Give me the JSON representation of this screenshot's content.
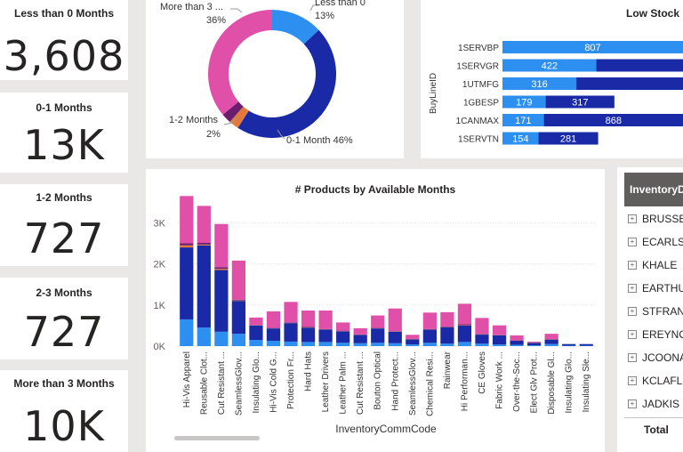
{
  "kpis": [
    {
      "title": "Less than 0 Months",
      "value": "3,608"
    },
    {
      "title": "0-1 Months",
      "value": "13K"
    },
    {
      "title": "1-2 Months",
      "value": "727"
    },
    {
      "title": "2-3 Months",
      "value": "727"
    },
    {
      "title": "More than 3 Months",
      "value": "10K"
    }
  ],
  "donut": {
    "chart_data": {
      "type": "pie",
      "slices": [
        {
          "label": "Less than 0",
          "value": 13,
          "display": "13%",
          "color": "#2d8ff0"
        },
        {
          "label": "0-1 Month",
          "value": 46,
          "display": "0-1 Month 46%",
          "color": "#1a2aa6"
        },
        {
          "label": "",
          "value": 2.5,
          "display": "",
          "color": "#e5793a"
        },
        {
          "label": "",
          "value": 2.5,
          "display": "",
          "color": "#6b1e6e"
        },
        {
          "label": "More than 3 ...",
          "value": 36,
          "display": "36%",
          "color": "#e04fa8"
        }
      ],
      "labels": {
        "top_left": "More than 3 ...",
        "top_left_pct": "36%",
        "top_right": "Less than 0",
        "top_right_pct": "13%",
        "left": "1-2 Months",
        "left_pct": "2%",
        "bottom": "0-1 Month 46%"
      }
    }
  },
  "low_stock": {
    "title": "Low Stock",
    "axis_label": "BuyLineID",
    "chart_data": {
      "type": "bar",
      "orientation": "horizontal",
      "categories": [
        "1SERVBP",
        "1SERVGR",
        "1UTMFG",
        "1GBESP",
        "1CANMAX",
        "1SERVTN"
      ],
      "series": [
        {
          "values": [
            807,
            422,
            316,
            179,
            171,
            154
          ],
          "color": "#2d8ff0"
        },
        {
          "values": [
            null,
            null,
            null,
            317,
            868,
            281
          ],
          "color": "#1a2aa6"
        }
      ],
      "bar_ends_fraction": [
        1.0,
        1.0,
        1.0,
        0.62,
        1.0,
        0.53
      ],
      "light_fraction": [
        1.0,
        0.52,
        0.41,
        0.24,
        0.23,
        0.2
      ]
    }
  },
  "products": {
    "title": "# Products by Available Months",
    "xlabel": "InventoryCommCode",
    "chart_data": {
      "type": "bar",
      "stacked": true,
      "ylim": [
        0,
        3700
      ],
      "yticks": [
        0,
        1000,
        2000,
        3000
      ],
      "ytick_labels": [
        "0K",
        "1K",
        "2K",
        "3K"
      ],
      "categories": [
        "Hi-Vis Apparel",
        "Reusable Clot...",
        "Cut Resistant ...",
        "SeamlessGlov...",
        "Insulating Glo...",
        "Hi-Vis Cold G...",
        "Protection Fr...",
        "Hard Hats",
        "Leather Drivers",
        "Leather Palm ...",
        "Cut Resistant ...",
        "Bouton Optical",
        "Hand Protect...",
        "SeamlessGlov...",
        "Chemical Resi...",
        "Rainwear",
        "Hi Performan...",
        "CE Gloves",
        "Fabric Work ...",
        "Over-the-Soc...",
        "Elect Glv Prot...",
        "Disposable Gl...",
        "Insulating Glo...",
        "Insulating Sle..."
      ],
      "series": [
        {
          "name": "Less than 0",
          "color": "#2d8ff0",
          "values": [
            650,
            450,
            350,
            300,
            150,
            130,
            110,
            100,
            100,
            80,
            70,
            80,
            70,
            40,
            80,
            60,
            100,
            60,
            40,
            30,
            20,
            50,
            10,
            10
          ]
        },
        {
          "name": "0-1 Month",
          "color": "#1a2aa6",
          "values": [
            1750,
            2000,
            1500,
            800,
            350,
            300,
            450,
            350,
            300,
            280,
            200,
            350,
            280,
            120,
            320,
            400,
            400,
            220,
            220,
            100,
            60,
            110,
            40,
            40
          ]
        },
        {
          "name": "1-2 Months",
          "color": "#e5793a",
          "values": [
            50,
            20,
            30,
            10,
            5,
            5,
            5,
            5,
            5,
            5,
            5,
            5,
            5,
            5,
            5,
            5,
            10,
            5,
            5,
            5,
            5,
            5,
            0,
            0
          ]
        },
        {
          "name": "2-3 Months",
          "color": "#6b1e6e",
          "values": [
            50,
            40,
            40,
            20,
            10,
            10,
            10,
            10,
            10,
            10,
            10,
            10,
            10,
            10,
            10,
            10,
            20,
            10,
            10,
            5,
            5,
            5,
            0,
            0
          ]
        },
        {
          "name": "More than 3 Months",
          "color": "#e04fa8",
          "values": [
            1150,
            900,
            1050,
            950,
            180,
            400,
            500,
            400,
            450,
            200,
            150,
            300,
            550,
            100,
            400,
            350,
            500,
            390,
            230,
            120,
            20,
            130,
            0,
            0
          ]
        }
      ]
    }
  },
  "table": {
    "header": "InventoryD",
    "rows": [
      "BRUSSE",
      "ECARLS",
      "KHALE",
      "EARTHU",
      "STFRAN",
      "EREYNO",
      "JCOONA",
      "KCLAFL",
      "JADKIS"
    ],
    "total_label": "Total"
  }
}
